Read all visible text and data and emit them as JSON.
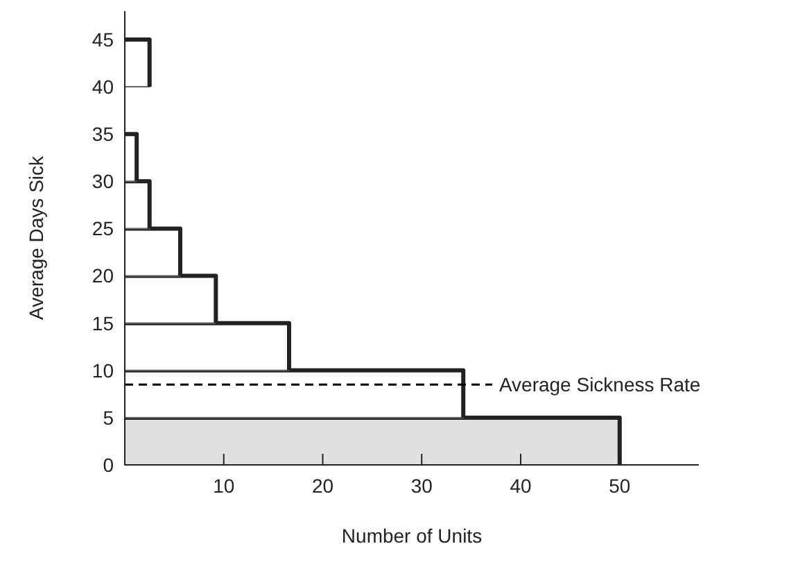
{
  "chart_data": {
    "type": "histogram",
    "orientation": "horizontal",
    "xlabel": "Number of Units",
    "ylabel": "Average Days Sick",
    "bins": [
      0,
      5,
      10,
      15,
      20,
      25,
      30,
      35,
      40,
      45
    ],
    "values": [
      50,
      34.2,
      16.6,
      9.2,
      5.6,
      2.5,
      1.2,
      0,
      2.5
    ],
    "colors": [
      "#e0e0e0",
      "#ffffff",
      "#ffffff",
      "#ffffff",
      "#ffffff",
      "#ffffff",
      "#ffffff",
      "#ffffff",
      "#ffffff"
    ],
    "xlim": [
      0,
      58
    ],
    "ylim": [
      0,
      48
    ],
    "xticks": [
      10,
      20,
      30,
      40,
      50
    ],
    "yticks": [
      0,
      5,
      10,
      15,
      20,
      25,
      30,
      35,
      40,
      45
    ],
    "ref_lines": [
      {
        "axis": "y",
        "value": 8.5,
        "label": "Average Sickness Rate",
        "line_style": "dashed",
        "color": "#000000"
      }
    ]
  }
}
